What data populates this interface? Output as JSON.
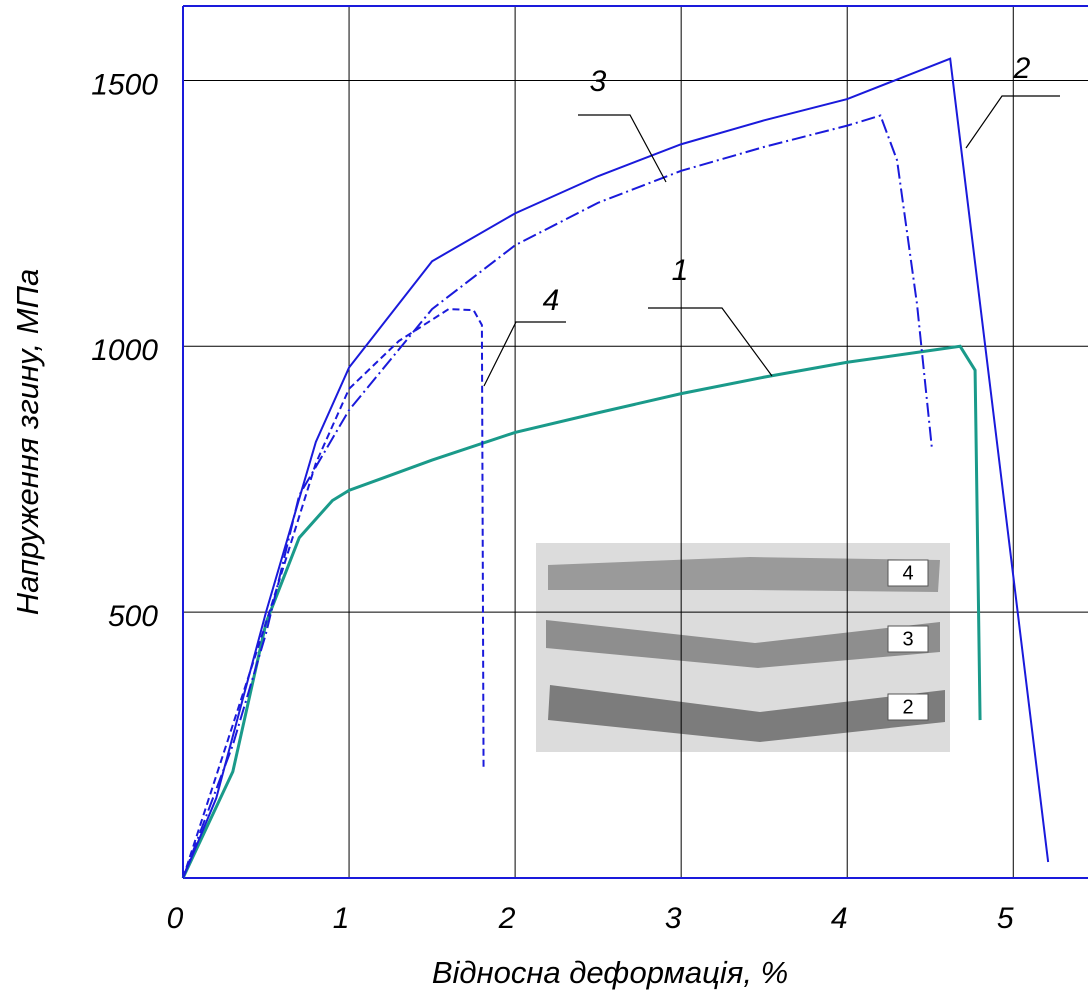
{
  "chart_data": {
    "type": "line",
    "x_label": "Відносна деформація, %",
    "y_label": "Напруження згину, МПа",
    "xlim": [
      0,
      5.45
    ],
    "ylim": [
      0,
      1640
    ],
    "xticks": [
      0,
      1,
      2,
      3,
      4,
      5
    ],
    "yticks": [
      500,
      1000,
      1500
    ],
    "grid": true,
    "series": [
      {
        "name": "1",
        "color": "#1a9a8a",
        "style": "solid",
        "x": [
          0,
          0.3,
          0.5,
          0.7,
          0.9,
          1,
          1.5,
          2,
          2.5,
          3,
          3.5,
          4,
          4.5,
          4.68,
          4.77,
          4.79,
          4.8
        ],
        "values": [
          0,
          200,
          480,
          640,
          710,
          729,
          786,
          838,
          875,
          911,
          942,
          970,
          992,
          1000,
          955,
          522,
          297
        ]
      },
      {
        "name": "2",
        "color": "#1a1adb",
        "style": "solid",
        "x": [
          0,
          0.2,
          0.5,
          0.8,
          1,
          1.5,
          2,
          2.5,
          3,
          3.5,
          4,
          4.62,
          5.21
        ],
        "values": [
          0,
          150,
          500,
          820,
          960,
          1160,
          1250,
          1320,
          1380,
          1425,
          1465,
          1541,
          30
        ]
      },
      {
        "name": "3",
        "color": "#1a1adb",
        "style": "dashdot",
        "x": [
          0,
          0.3,
          0.5,
          0.7,
          1,
          1.5,
          2,
          2.5,
          3,
          3.5,
          4,
          4.2,
          4.3,
          4.42,
          4.51
        ],
        "values": [
          0,
          250,
          460,
          720,
          880,
          1070,
          1190,
          1270,
          1330,
          1375,
          1415,
          1434,
          1350,
          1080,
          808
        ]
      },
      {
        "name": "4",
        "color": "#1a1adb",
        "style": "dash",
        "x": [
          0,
          0.5,
          0.8,
          1,
          1.3,
          1.6,
          1.75,
          1.8,
          1.81
        ],
        "values": [
          0,
          480,
          780,
          920,
          1010,
          1070,
          1068,
          1040,
          203
        ]
      }
    ]
  },
  "inset_labels": [
    "4",
    "3",
    "2"
  ]
}
